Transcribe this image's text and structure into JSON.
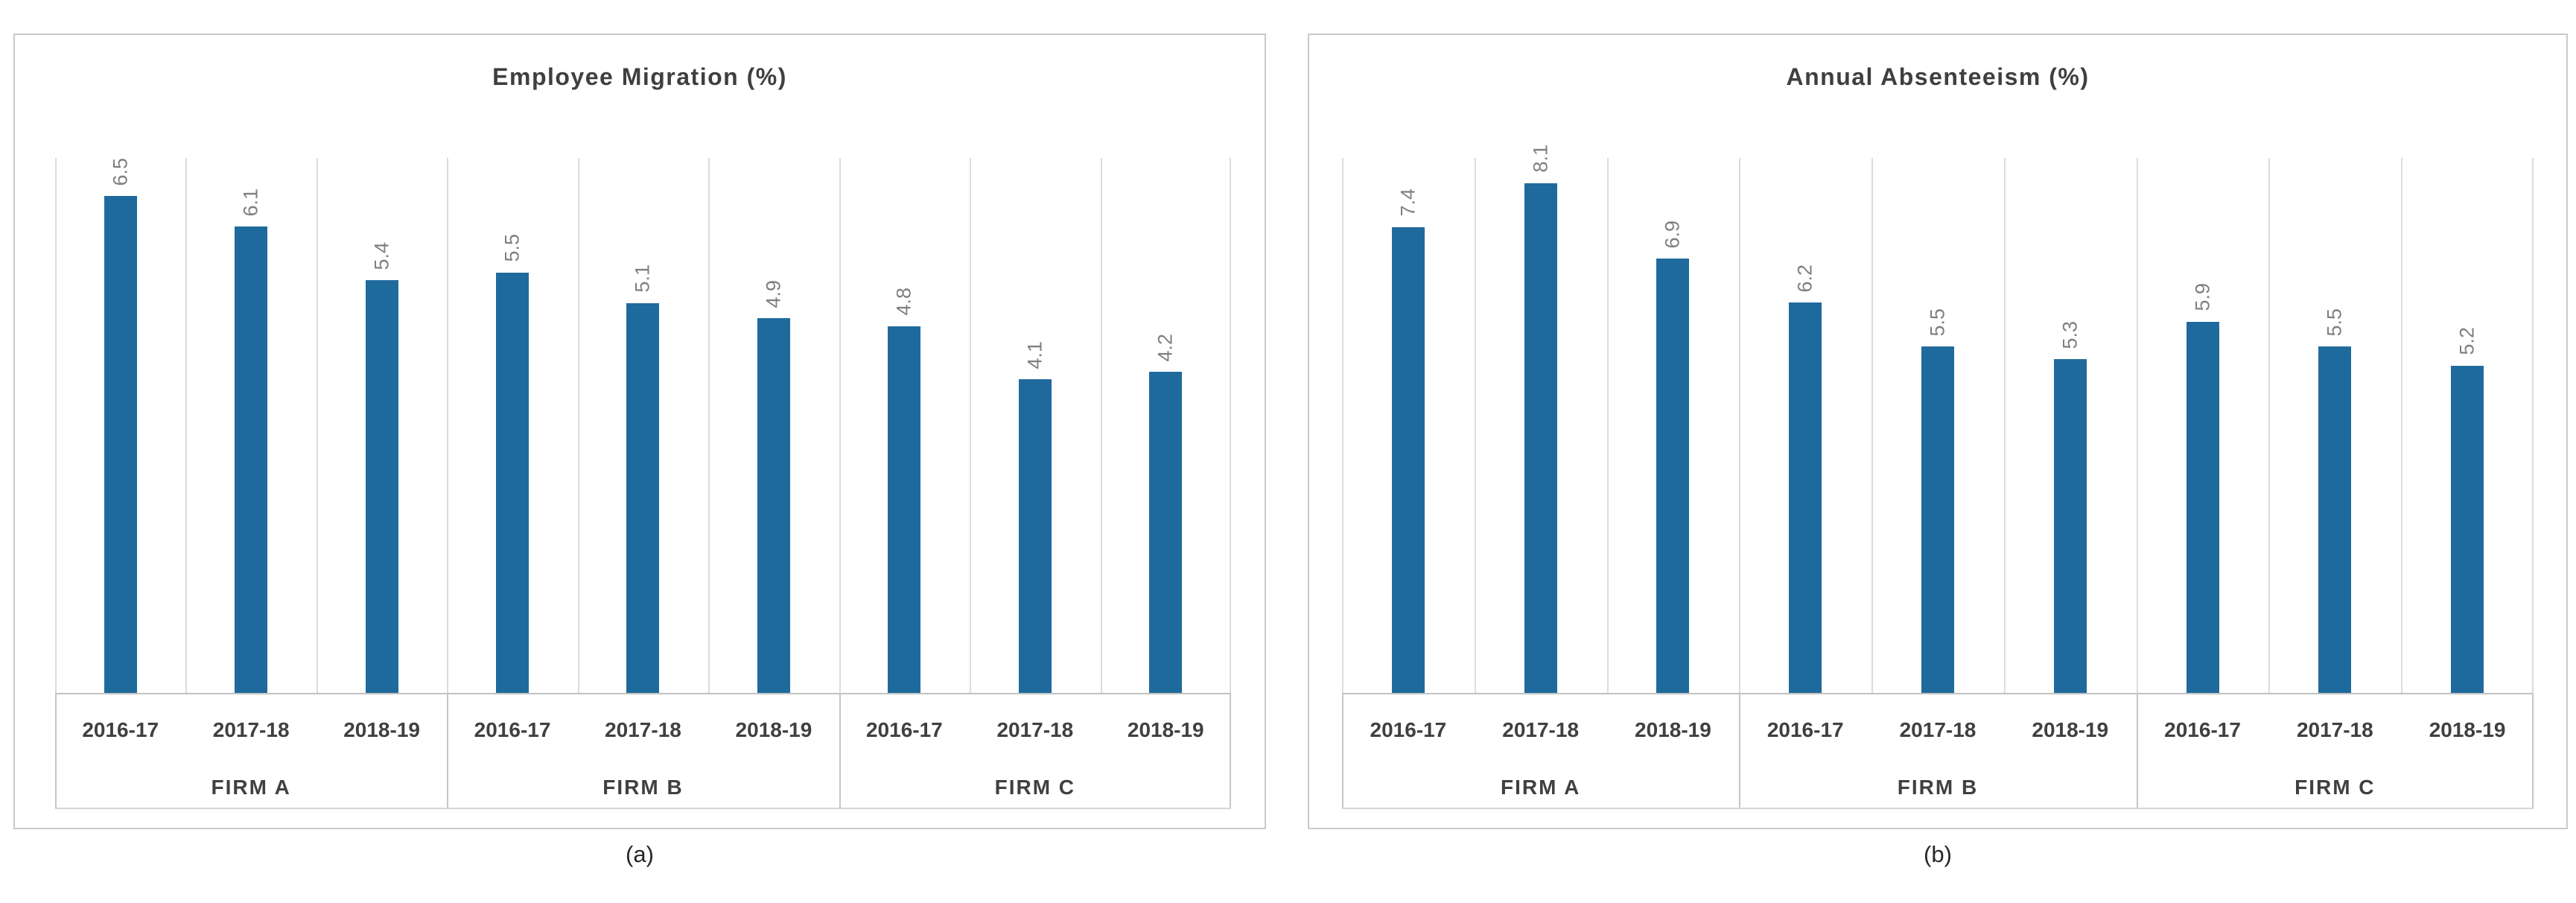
{
  "page": {
    "background": "#FFFFFF"
  },
  "colors": {
    "bar": "#1F6A9D",
    "gridline": "#DCDCDC",
    "axis_line": "#C2C2C2",
    "group_separator": "#C6C6C6",
    "title_text": "#3F3F3F",
    "data_label_text": "#7F7F7F",
    "axis_text": "#404040",
    "panel_border": "#C9C9C9"
  },
  "chart_data": [
    {
      "type": "bar",
      "title": "Employee Migration (%)",
      "caption": "(a)",
      "categories": [
        "2016-17",
        "2017-18",
        "2018-19",
        "2016-17",
        "2017-18",
        "2018-19",
        "2016-17",
        "2017-18",
        "2018-19"
      ],
      "group_labels": [
        "FIRM A",
        "FIRM B",
        "FIRM C"
      ],
      "values": [
        6.5,
        6.1,
        5.4,
        5.5,
        5.1,
        4.9,
        4.8,
        4.1,
        4.2
      ],
      "data_labels": [
        "6.5",
        "6.1",
        "5.4",
        "5.5",
        "5.1",
        "4.9",
        "4.8",
        "4.1",
        "4.2"
      ],
      "xlabel": "",
      "ylabel": "",
      "ylim": [
        0,
        7.0
      ],
      "grid": "vertical category boundary lines",
      "legend": "none",
      "bar_color": "#1F6A9D",
      "data_label_rotation": "90deg (reads bottom to top)"
    },
    {
      "type": "bar",
      "title": "Annual Absenteeism (%)",
      "caption": "(b)",
      "categories": [
        "2016-17",
        "2017-18",
        "2018-19",
        "2016-17",
        "2017-18",
        "2018-19",
        "2016-17",
        "2017-18",
        "2018-19"
      ],
      "group_labels": [
        "FIRM A",
        "FIRM B",
        "FIRM C"
      ],
      "values": [
        7.4,
        8.1,
        6.9,
        6.2,
        5.5,
        5.3,
        5.9,
        5.5,
        5.2
      ],
      "data_labels": [
        "7.4",
        "8.1",
        "6.9",
        "6.2",
        "5.5",
        "5.3",
        "5.9",
        "5.5",
        "5.2"
      ],
      "xlabel": "",
      "ylabel": "",
      "ylim": [
        0,
        8.5
      ],
      "grid": "vertical category boundary lines",
      "legend": "none",
      "bar_color": "#1F6A9D",
      "data_label_rotation": "90deg (reads bottom to top)"
    }
  ]
}
